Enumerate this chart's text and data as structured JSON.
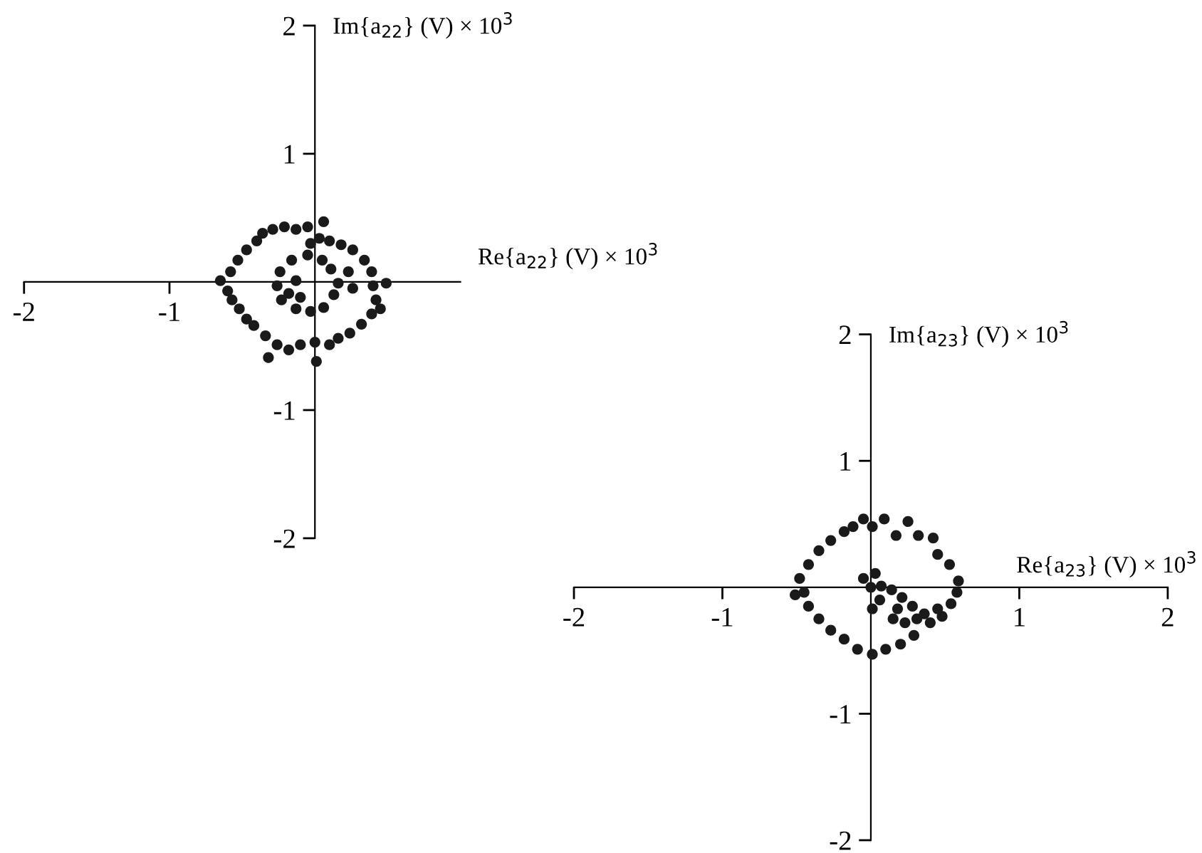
{
  "chart_data": [
    {
      "type": "scatter",
      "xlabel": "Re{a$_{22}$} (V) × 10$^{3}$",
      "ylabel": "Im{a$_{22}$} (V) × 10$^{3}$",
      "xlim": [
        -2,
        1
      ],
      "ylim": [
        -2,
        2
      ],
      "xticks": [
        -2,
        -1
      ],
      "yticks": [
        -2,
        -1,
        1,
        2
      ],
      "grid": false,
      "marker": "circle",
      "series": [
        {
          "color": "#1a1a1a",
          "x": [
            -0.36,
            -0.29,
            -0.21,
            -0.13,
            -0.05,
            0.06,
            -0.4,
            -0.47,
            -0.53,
            -0.58,
            -0.65,
            -0.6,
            -0.57,
            -0.52,
            -0.47,
            -0.42,
            -0.34,
            -0.32,
            -0.26,
            -0.18,
            -0.1,
            0.0,
            0.01,
            0.1,
            0.16,
            0.24,
            0.32,
            0.39,
            0.45,
            0.42,
            0.4,
            0.49,
            0.39,
            0.34,
            0.26,
            0.18,
            0.1,
            0.03,
            -0.03,
            -0.05,
            -0.16,
            -0.24,
            -0.26,
            -0.23,
            -0.13,
            -0.03,
            0.06,
            0.13,
            0.16,
            0.11,
            0.05,
            -0.13,
            -0.18,
            -0.1,
            0.23,
            0.26
          ],
          "values": [
            0.38,
            0.41,
            0.43,
            0.41,
            0.43,
            0.47,
            0.32,
            0.25,
            0.17,
            0.08,
            0.01,
            -0.07,
            -0.14,
            -0.21,
            -0.29,
            -0.34,
            -0.42,
            -0.59,
            -0.49,
            -0.53,
            -0.49,
            -0.47,
            -0.62,
            -0.49,
            -0.44,
            -0.4,
            -0.33,
            -0.25,
            -0.21,
            -0.14,
            -0.03,
            -0.01,
            0.08,
            0.17,
            0.25,
            0.29,
            0.32,
            0.34,
            0.3,
            0.21,
            0.17,
            0.08,
            -0.03,
            -0.14,
            -0.21,
            -0.23,
            -0.2,
            -0.1,
            -0.01,
            0.1,
            0.17,
            0.01,
            -0.09,
            -0.12,
            0.08,
            -0.05
          ]
        }
      ]
    },
    {
      "type": "scatter",
      "xlabel": "Re{a$_{23}$} (V) × 10$^{3}$",
      "ylabel": "Im{a$_{23}$} (V) × 10$^{3}$",
      "xlim": [
        -2,
        2
      ],
      "ylim": [
        -2,
        2
      ],
      "xticks": [
        -2,
        -1,
        1,
        2
      ],
      "yticks": [
        -2,
        -1,
        1,
        2
      ],
      "grid": false,
      "marker": "circle",
      "series": [
        {
          "color": "#1a1a1a",
          "x": [
            -0.05,
            0.09,
            0.25,
            0.17,
            0.32,
            0.42,
            0.45,
            0.53,
            0.59,
            0.58,
            0.54,
            0.48,
            0.4,
            0.29,
            0.2,
            0.1,
            0.01,
            -0.09,
            -0.18,
            -0.27,
            -0.35,
            -0.42,
            -0.45,
            -0.51,
            -0.48,
            -0.42,
            -0.35,
            -0.27,
            -0.18,
            -0.12,
            0.01,
            -0.05,
            0.03,
            0.0,
            0.07,
            0.14,
            0.21,
            0.28,
            0.31,
            0.23,
            0.15,
            0.18,
            0.06,
            0.01,
            0.36,
            0.45
          ],
          "values": [
            0.54,
            0.54,
            0.52,
            0.41,
            0.41,
            0.39,
            0.26,
            0.18,
            0.05,
            -0.04,
            -0.13,
            -0.23,
            -0.28,
            -0.38,
            -0.45,
            -0.49,
            -0.53,
            -0.49,
            -0.41,
            -0.34,
            -0.25,
            -0.15,
            -0.04,
            -0.06,
            0.07,
            0.18,
            0.29,
            0.37,
            0.44,
            0.48,
            0.48,
            0.07,
            0.11,
            0.0,
            0.01,
            -0.02,
            -0.08,
            -0.15,
            -0.25,
            -0.28,
            -0.25,
            -0.17,
            -0.1,
            -0.17,
            -0.21,
            -0.17
          ]
        }
      ]
    }
  ]
}
